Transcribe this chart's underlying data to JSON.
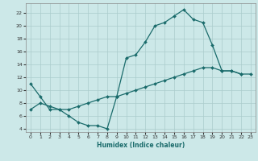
{
  "xlabel": "Humidex (Indice chaleur)",
  "xlim": [
    -0.5,
    23.5
  ],
  "ylim": [
    3.5,
    23.5
  ],
  "yticks": [
    4,
    6,
    8,
    10,
    12,
    14,
    16,
    18,
    20,
    22
  ],
  "xticks": [
    0,
    1,
    2,
    3,
    4,
    5,
    6,
    7,
    8,
    9,
    10,
    11,
    12,
    13,
    14,
    15,
    16,
    17,
    18,
    19,
    20,
    21,
    22,
    23
  ],
  "bg_color": "#cce8e8",
  "grid_color": "#aacccc",
  "line_color": "#1a6b6b",
  "curve1": {
    "x": [
      0,
      1,
      2,
      3,
      4,
      5,
      6,
      7,
      8,
      9
    ],
    "y": [
      11,
      9,
      7,
      7,
      6,
      5,
      4.5,
      4.5,
      4,
      9
    ]
  },
  "curve2": {
    "x": [
      9,
      10,
      11,
      12,
      13,
      14,
      15,
      16,
      17,
      18,
      19,
      20,
      21,
      22
    ],
    "y": [
      9,
      15,
      15.5,
      17.5,
      20,
      20.5,
      21.5,
      22.5,
      21,
      20.5,
      17,
      13,
      13,
      12.5
    ]
  },
  "curve3": {
    "x": [
      0,
      1,
      2,
      3,
      4,
      5,
      6,
      7,
      8,
      9,
      10,
      11,
      12,
      13,
      14,
      15,
      16,
      17,
      18,
      19,
      20,
      21,
      22,
      23
    ],
    "y": [
      7,
      8,
      7.5,
      7,
      7,
      7.5,
      8,
      8.5,
      9,
      9,
      9.5,
      10,
      10.5,
      11,
      11.5,
      12,
      12.5,
      13,
      13.5,
      13.5,
      13,
      13,
      12.5,
      12.5
    ]
  },
  "xlabel_fontsize": 5.5,
  "tick_fontsize": 4.5,
  "marker_size": 2.0,
  "line_width": 0.9
}
